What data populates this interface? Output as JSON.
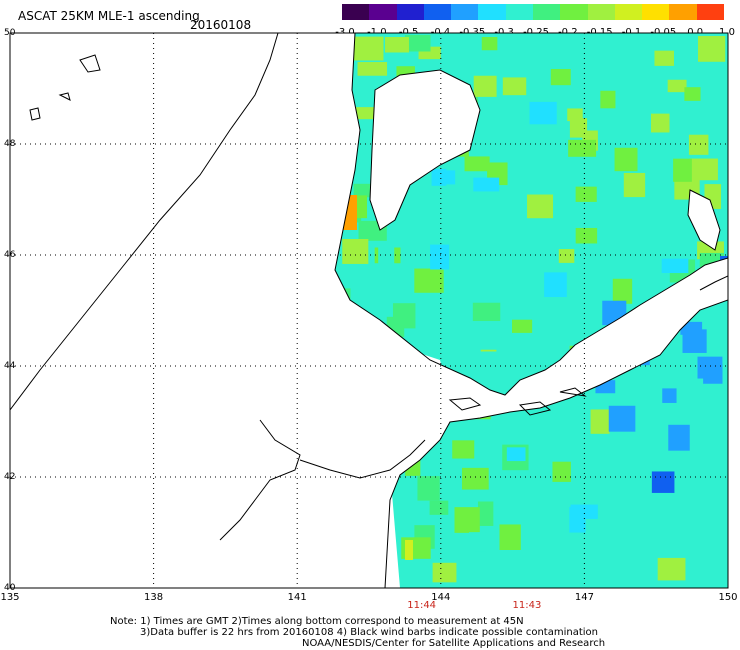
{
  "header": {
    "title": "ASCAT 25KM MLE-1 ascending",
    "date": "20160108"
  },
  "colorbar": {
    "colors": [
      "#3a0050",
      "#5a0090",
      "#2020d0",
      "#1060f0",
      "#20a0ff",
      "#20e0ff",
      "#30f0d0",
      "#40f080",
      "#70f040",
      "#a0f040",
      "#d0f020",
      "#ffe000",
      "#ffa000",
      "#ff4010"
    ],
    "labels": [
      "-3.0",
      "-1.0",
      "-0.5",
      "-0.4",
      "-0.35",
      "-0.3",
      "-0.25",
      "-0.2",
      "-0.15",
      "-0.1",
      "-0.05",
      "0.0",
      "1.0"
    ]
  },
  "map": {
    "lon_range": [
      135,
      150
    ],
    "lat_range": [
      40,
      50
    ],
    "lat_ticks": [
      "40",
      "42",
      "44",
      "46",
      "48",
      "50"
    ],
    "lon_ticks": [
      "135",
      "138",
      "141",
      "144",
      "147",
      "150"
    ],
    "pass_times": [
      {
        "label": "11:44",
        "lon": 143.6
      },
      {
        "label": "11:43",
        "lon": 145.8
      }
    ],
    "land_color": "#ffffff",
    "grid": "dotted"
  },
  "notes": [
    "Note: 1) Times are GMT 2)Times along bottom correspond to measurement at 45N",
    "3)Data buffer is 22 hrs from 20160108 4) Black wind barbs indicate possible contamination",
    "NOAA/NESDIS/Center for Satellite Applications and Research"
  ]
}
